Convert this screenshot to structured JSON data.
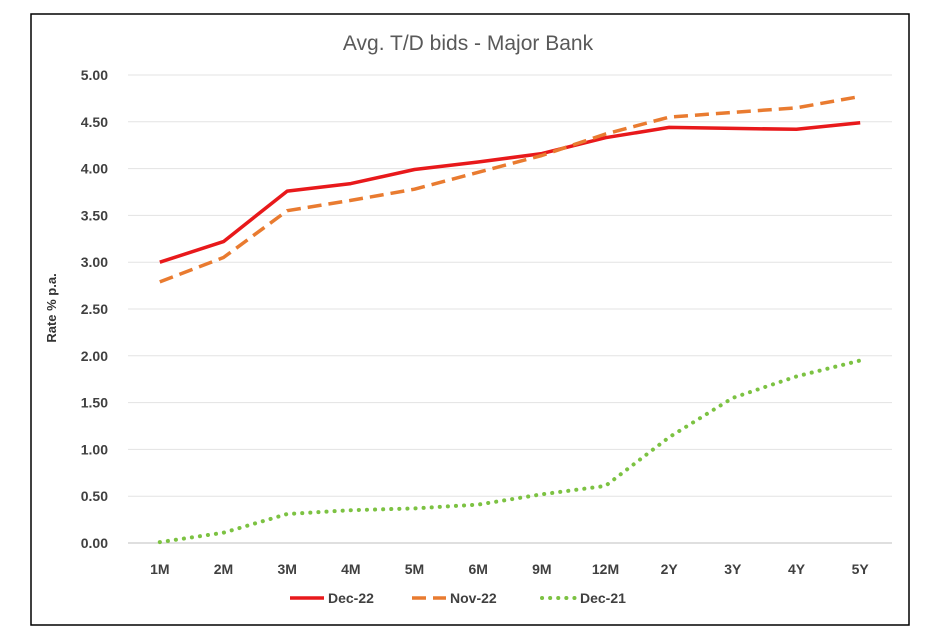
{
  "chart_data": {
    "type": "line",
    "title": "Avg. T/D bids - Major Bank",
    "xlabel": "",
    "ylabel": "Rate % p.a.",
    "ylim": [
      0,
      5
    ],
    "yticks": [
      "0.00",
      "0.50",
      "1.00",
      "1.50",
      "2.00",
      "2.50",
      "3.00",
      "3.50",
      "4.00",
      "4.50",
      "5.00"
    ],
    "categories": [
      "1M",
      "2M",
      "3M",
      "4M",
      "5M",
      "6M",
      "9M",
      "12M",
      "2Y",
      "3Y",
      "4Y",
      "5Y"
    ],
    "grid": true,
    "legend_position": "bottom",
    "series": [
      {
        "name": "Dec-22",
        "style": "solid",
        "color": "#e8191b",
        "values": [
          3.0,
          3.22,
          3.76,
          3.84,
          3.99,
          4.07,
          4.16,
          4.33,
          4.44,
          4.43,
          4.42,
          4.49
        ]
      },
      {
        "name": "Nov-22",
        "style": "dashed",
        "color": "#e97b30",
        "values": [
          2.79,
          3.05,
          3.55,
          3.66,
          3.78,
          3.96,
          4.14,
          4.37,
          4.55,
          4.6,
          4.65,
          4.77
        ]
      },
      {
        "name": "Dec-21",
        "style": "dotted",
        "color": "#7cc242",
        "values": [
          0.01,
          0.11,
          0.31,
          0.35,
          0.37,
          0.41,
          0.52,
          0.61,
          1.13,
          1.55,
          1.78,
          1.95
        ]
      }
    ]
  }
}
